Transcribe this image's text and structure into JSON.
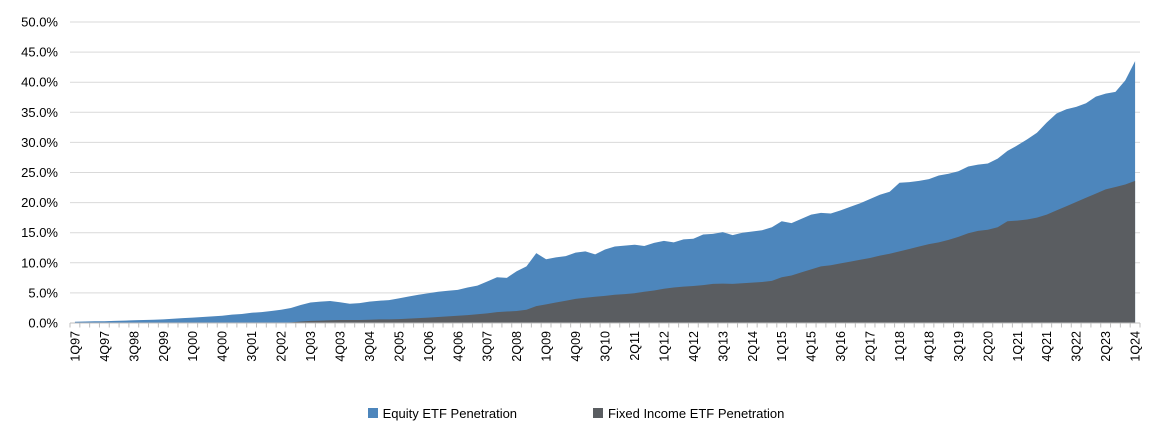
{
  "chart_data": {
    "type": "area",
    "title": "",
    "xlabel": "",
    "ylabel": "",
    "grid": true,
    "legend_position": "bottom",
    "y_axis": {
      "min": 0,
      "max": 50,
      "step": 5,
      "tick_labels": [
        "0.0%",
        "5.0%",
        "10.0%",
        "15.0%",
        "20.0%",
        "25.0%",
        "30.0%",
        "35.0%",
        "40.0%",
        "45.0%",
        "50.0%"
      ]
    },
    "x_tick_labels": [
      "1Q97",
      "4Q97",
      "3Q98",
      "2Q99",
      "1Q00",
      "4Q00",
      "3Q01",
      "2Q02",
      "1Q03",
      "4Q03",
      "3Q04",
      "2Q05",
      "1Q06",
      "4Q06",
      "3Q07",
      "2Q08",
      "1Q09",
      "4Q09",
      "3Q10",
      "2Q11",
      "1Q12",
      "4Q12",
      "3Q13",
      "2Q14",
      "1Q15",
      "4Q15",
      "3Q16",
      "2Q17",
      "1Q18",
      "4Q18",
      "3Q19",
      "2Q20",
      "1Q21",
      "4Q21",
      "3Q22",
      "2Q23",
      "1Q24"
    ],
    "label_every": 3,
    "categories": [
      "1Q97",
      "2Q97",
      "3Q97",
      "4Q97",
      "1Q98",
      "2Q98",
      "3Q98",
      "4Q98",
      "1Q99",
      "2Q99",
      "3Q99",
      "4Q99",
      "1Q00",
      "2Q00",
      "3Q00",
      "4Q00",
      "1Q01",
      "2Q01",
      "3Q01",
      "4Q01",
      "1Q02",
      "2Q02",
      "3Q02",
      "4Q02",
      "1Q03",
      "2Q03",
      "3Q03",
      "4Q03",
      "1Q04",
      "2Q04",
      "3Q04",
      "4Q04",
      "1Q05",
      "2Q05",
      "3Q05",
      "4Q05",
      "1Q06",
      "2Q06",
      "3Q06",
      "4Q06",
      "1Q07",
      "2Q07",
      "3Q07",
      "4Q07",
      "1Q08",
      "2Q08",
      "3Q08",
      "4Q08",
      "1Q09",
      "2Q09",
      "3Q09",
      "4Q09",
      "1Q10",
      "2Q10",
      "3Q10",
      "4Q10",
      "1Q11",
      "2Q11",
      "3Q11",
      "4Q11",
      "1Q12",
      "2Q12",
      "3Q12",
      "4Q12",
      "1Q13",
      "2Q13",
      "3Q13",
      "4Q13",
      "1Q14",
      "2Q14",
      "3Q14",
      "4Q14",
      "1Q15",
      "2Q15",
      "3Q15",
      "4Q15",
      "1Q16",
      "2Q16",
      "3Q16",
      "4Q16",
      "1Q17",
      "2Q17",
      "3Q17",
      "4Q17",
      "1Q18",
      "2Q18",
      "3Q18",
      "4Q18",
      "1Q19",
      "2Q19",
      "3Q19",
      "4Q19",
      "1Q20",
      "2Q20",
      "3Q20",
      "4Q20",
      "1Q21",
      "2Q21",
      "3Q21",
      "4Q21",
      "1Q22",
      "2Q22",
      "3Q22",
      "4Q22",
      "1Q23",
      "2Q23",
      "3Q23",
      "4Q23",
      "1Q24"
    ],
    "series": [
      {
        "name": "Equity ETF Penetration",
        "color": "#4D86BC",
        "values": [
          0.2,
          0.25,
          0.3,
          0.3,
          0.35,
          0.4,
          0.45,
          0.5,
          0.55,
          0.6,
          0.7,
          0.8,
          0.9,
          1.0,
          1.1,
          1.2,
          1.4,
          1.5,
          1.7,
          1.8,
          2.0,
          2.2,
          2.5,
          3.0,
          3.4,
          3.55,
          3.65,
          3.45,
          3.2,
          3.3,
          3.55,
          3.7,
          3.8,
          4.1,
          4.4,
          4.7,
          4.95,
          5.2,
          5.35,
          5.5,
          5.9,
          6.2,
          6.9,
          7.6,
          7.5,
          8.6,
          9.4,
          11.6,
          10.6,
          10.9,
          11.1,
          11.7,
          11.9,
          11.4,
          12.2,
          12.7,
          12.85,
          13.0,
          12.8,
          13.3,
          13.65,
          13.4,
          13.9,
          14.0,
          14.7,
          14.8,
          15.1,
          14.6,
          15.0,
          15.2,
          15.4,
          15.9,
          16.9,
          16.6,
          17.3,
          18.0,
          18.3,
          18.2,
          18.7,
          19.3,
          19.9,
          20.6,
          21.3,
          21.8,
          23.3,
          23.4,
          23.6,
          23.9,
          24.5,
          24.8,
          25.2,
          26.0,
          26.3,
          26.5,
          27.3,
          28.6,
          29.5,
          30.5,
          31.6,
          33.3,
          34.8,
          35.5,
          35.9,
          36.5,
          37.6,
          38.1,
          38.4,
          40.3,
          43.5
        ]
      },
      {
        "name": "Fixed Income ETF Penetration",
        "color": "#5A5D61",
        "values": [
          0,
          0,
          0,
          0,
          0,
          0,
          0,
          0,
          0,
          0,
          0,
          0,
          0,
          0,
          0,
          0,
          0,
          0,
          0,
          0,
          0,
          0.05,
          0.1,
          0.25,
          0.35,
          0.4,
          0.45,
          0.5,
          0.5,
          0.5,
          0.55,
          0.6,
          0.6,
          0.65,
          0.72,
          0.8,
          0.9,
          1.0,
          1.1,
          1.2,
          1.3,
          1.45,
          1.6,
          1.8,
          1.9,
          2.0,
          2.2,
          2.8,
          3.1,
          3.4,
          3.7,
          4.0,
          4.2,
          4.35,
          4.5,
          4.7,
          4.8,
          4.95,
          5.2,
          5.4,
          5.7,
          5.9,
          6.05,
          6.15,
          6.3,
          6.5,
          6.55,
          6.5,
          6.6,
          6.7,
          6.8,
          7.0,
          7.6,
          7.9,
          8.4,
          8.9,
          9.4,
          9.6,
          9.9,
          10.2,
          10.5,
          10.8,
          11.2,
          11.5,
          11.9,
          12.3,
          12.7,
          13.1,
          13.4,
          13.8,
          14.3,
          14.9,
          15.3,
          15.5,
          15.9,
          16.9,
          17.0,
          17.2,
          17.5,
          18.0,
          18.7,
          19.4,
          20.1,
          20.8,
          21.5,
          22.2,
          22.6,
          23.0,
          23.6
        ]
      }
    ],
    "colors": {
      "gridline": "#D9D9D9",
      "axis": "#BFBFBF",
      "text": "#000000",
      "background": "#FFFFFF"
    }
  },
  "legend": {
    "items": [
      {
        "label": "Equity ETF Penetration",
        "color": "#4D86BC"
      },
      {
        "label": "Fixed Income ETF Penetration",
        "color": "#5A5D61"
      }
    ]
  }
}
